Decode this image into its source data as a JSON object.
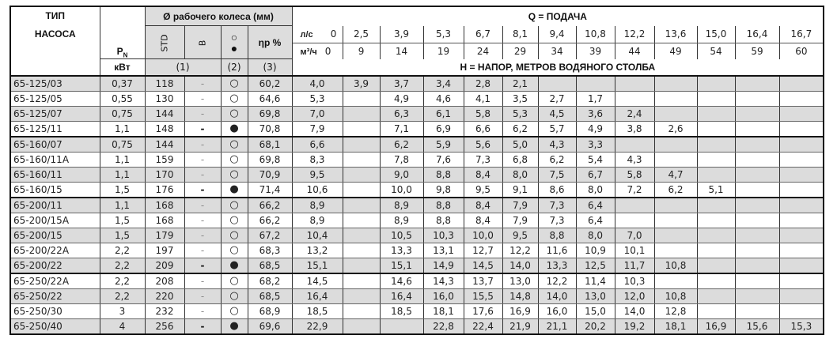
{
  "header": {
    "type_line1": "ТИП",
    "type_line2": "НАСОСА",
    "power_symbol": "P",
    "power_subscript": "N",
    "power_unit": "кВт",
    "impeller_title": "Ø рабочего колеса (мм)",
    "col_std": "STD",
    "col_b": "B",
    "col_mark_open": "○",
    "col_mark_filled": "●",
    "col_eta": "ηp %",
    "note_1": "(1)",
    "note_2": "(2)",
    "note_3": "(3)",
    "flow_title": "Q = ПОДАЧА",
    "flow_unit_ls": "л/с",
    "flow_unit_m3h": "м³/ч",
    "flow_ls": [
      "0",
      "2,5",
      "3,9",
      "5,3",
      "6,7",
      "8,1",
      "9,4",
      "10,8",
      "12,2",
      "13,6",
      "15,0",
      "16,4",
      "16,7"
    ],
    "flow_m3h": [
      "0",
      "9",
      "14",
      "19",
      "24",
      "29",
      "34",
      "39",
      "44",
      "49",
      "54",
      "59",
      "60"
    ],
    "head_title": "H = НАПОР, МЕТРОВ ВОДЯНОГО СТОЛБА"
  },
  "rows": [
    {
      "type": "65-125/03",
      "p": "0,37",
      "std": "118",
      "b": "-",
      "mark": "○",
      "eta": "60,2",
      "h": [
        "4,0",
        "3,9",
        "3,7",
        "3,4",
        "2,8",
        "2,1",
        "",
        "",
        "",
        "",
        "",
        "",
        ""
      ]
    },
    {
      "type": "65-125/05",
      "p": "0,55",
      "std": "130",
      "b": "-",
      "mark": "○",
      "eta": "64,6",
      "h": [
        "5,3",
        "",
        "4,9",
        "4,6",
        "4,1",
        "3,5",
        "2,7",
        "1,7",
        "",
        "",
        "",
        "",
        ""
      ]
    },
    {
      "type": "65-125/07",
      "p": "0,75",
      "std": "144",
      "b": "-",
      "mark": "○",
      "eta": "69,8",
      "h": [
        "7,0",
        "",
        "6,3",
        "6,1",
        "5,8",
        "5,3",
        "4,5",
        "3,6",
        "2,4",
        "",
        "",
        "",
        ""
      ]
    },
    {
      "type": "65-125/11",
      "p": "1,1",
      "std": "148",
      "b": "-",
      "mark": "●",
      "eta": "70,8",
      "h": [
        "7,9",
        "",
        "7,1",
        "6,9",
        "6,6",
        "6,2",
        "5,7",
        "4,9",
        "3,8",
        "2,6",
        "",
        "",
        ""
      ]
    },
    {
      "type": "65-160/07",
      "p": "0,75",
      "std": "144",
      "b": "-",
      "mark": "○",
      "eta": "68,1",
      "h": [
        "6,6",
        "",
        "6,2",
        "5,9",
        "5,6",
        "5,0",
        "4,3",
        "3,3",
        "",
        "",
        "",
        "",
        ""
      ]
    },
    {
      "type": "65-160/11A",
      "p": "1,1",
      "std": "159",
      "b": "-",
      "mark": "○",
      "eta": "69,8",
      "h": [
        "8,3",
        "",
        "7,8",
        "7,6",
        "7,3",
        "6,8",
        "6,2",
        "5,4",
        "4,3",
        "",
        "",
        "",
        ""
      ]
    },
    {
      "type": "65-160/11",
      "p": "1,1",
      "std": "170",
      "b": "-",
      "mark": "○",
      "eta": "70,9",
      "h": [
        "9,5",
        "",
        "9,0",
        "8,8",
        "8,4",
        "8,0",
        "7,5",
        "6,7",
        "5,8",
        "4,7",
        "",
        "",
        ""
      ]
    },
    {
      "type": "65-160/15",
      "p": "1,5",
      "std": "176",
      "b": "-",
      "mark": "●",
      "eta": "71,4",
      "h": [
        "10,6",
        "",
        "10,0",
        "9,8",
        "9,5",
        "9,1",
        "8,6",
        "8,0",
        "7,2",
        "6,2",
        "5,1",
        "",
        ""
      ]
    },
    {
      "type": "65-200/11",
      "p": "1,1",
      "std": "168",
      "b": "-",
      "mark": "○",
      "eta": "66,2",
      "h": [
        "8,9",
        "",
        "8,9",
        "8,8",
        "8,4",
        "7,9",
        "7,3",
        "6,4",
        "",
        "",
        "",
        "",
        ""
      ]
    },
    {
      "type": "65-200/15A",
      "p": "1,5",
      "std": "168",
      "b": "-",
      "mark": "○",
      "eta": "66,2",
      "h": [
        "8,9",
        "",
        "8,9",
        "8,8",
        "8,4",
        "7,9",
        "7,3",
        "6,4",
        "",
        "",
        "",
        "",
        ""
      ]
    },
    {
      "type": "65-200/15",
      "p": "1,5",
      "std": "179",
      "b": "-",
      "mark": "○",
      "eta": "67,2",
      "h": [
        "10,4",
        "",
        "10,5",
        "10,3",
        "10,0",
        "9,5",
        "8,8",
        "8,0",
        "7,0",
        "",
        "",
        "",
        ""
      ]
    },
    {
      "type": "65-200/22A",
      "p": "2,2",
      "std": "197",
      "b": "-",
      "mark": "○",
      "eta": "68,3",
      "h": [
        "13,2",
        "",
        "13,3",
        "13,1",
        "12,7",
        "12,2",
        "11,6",
        "10,9",
        "10,1",
        "",
        "",
        "",
        ""
      ]
    },
    {
      "type": "65-200/22",
      "p": "2,2",
      "std": "209",
      "b": "-",
      "mark": "●",
      "eta": "68,5",
      "h": [
        "15,1",
        "",
        "15,1",
        "14,9",
        "14,5",
        "14,0",
        "13,3",
        "12,5",
        "11,7",
        "10,8",
        "",
        "",
        ""
      ]
    },
    {
      "type": "65-250/22A",
      "p": "2,2",
      "std": "208",
      "b": "-",
      "mark": "○",
      "eta": "68,2",
      "h": [
        "14,5",
        "",
        "14,6",
        "14,3",
        "13,7",
        "13,0",
        "12,2",
        "11,4",
        "10,3",
        "",
        "",
        "",
        ""
      ]
    },
    {
      "type": "65-250/22",
      "p": "2,2",
      "std": "220",
      "b": "-",
      "mark": "○",
      "eta": "68,5",
      "h": [
        "16,4",
        "",
        "16,4",
        "16,0",
        "15,5",
        "14,8",
        "14,0",
        "13,0",
        "12,0",
        "10,8",
        "",
        "",
        ""
      ]
    },
    {
      "type": "65-250/30",
      "p": "3",
      "std": "232",
      "b": "-",
      "mark": "○",
      "eta": "68,9",
      "h": [
        "18,5",
        "",
        "18,5",
        "18,1",
        "17,6",
        "16,9",
        "16,0",
        "15,0",
        "14,0",
        "12,8",
        "",
        "",
        ""
      ]
    },
    {
      "type": "65-250/40",
      "p": "4",
      "std": "256",
      "b": "-",
      "mark": "●",
      "eta": "69,6",
      "h": [
        "22,9",
        "",
        "",
        "22,8",
        "22,4",
        "21,9",
        "21,1",
        "20,2",
        "19,2",
        "18,1",
        "16,9",
        "15,6",
        "15,3"
      ]
    }
  ]
}
